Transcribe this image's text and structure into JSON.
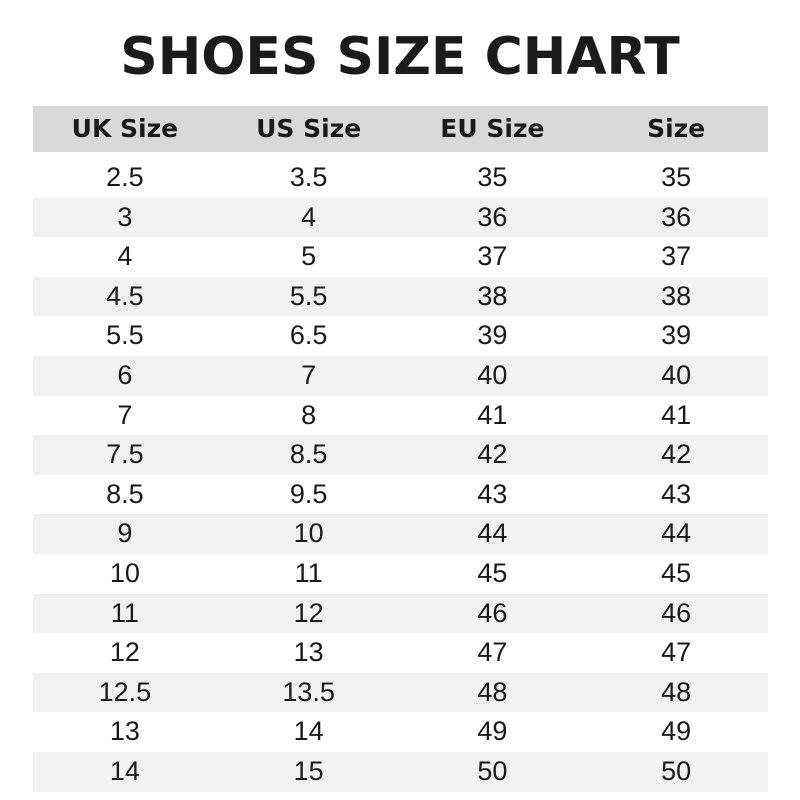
{
  "chart_data": {
    "type": "table",
    "title": "SHOES SIZE CHART",
    "columns": [
      "UK Size",
      "US Size",
      "EU Size",
      "Size"
    ],
    "rows": [
      [
        "2.5",
        "3.5",
        "35",
        "35"
      ],
      [
        "3",
        "4",
        "36",
        "36"
      ],
      [
        "4",
        "5",
        "37",
        "37"
      ],
      [
        "4.5",
        "5.5",
        "38",
        "38"
      ],
      [
        "5.5",
        "6.5",
        "39",
        "39"
      ],
      [
        "6",
        "7",
        "40",
        "40"
      ],
      [
        "7",
        "8",
        "41",
        "41"
      ],
      [
        "7.5",
        "8.5",
        "42",
        "42"
      ],
      [
        "8.5",
        "9.5",
        "43",
        "43"
      ],
      [
        "9",
        "10",
        "44",
        "44"
      ],
      [
        "10",
        "11",
        "45",
        "45"
      ],
      [
        "11",
        "12",
        "46",
        "46"
      ],
      [
        "12",
        "13",
        "47",
        "47"
      ],
      [
        "12.5",
        "13.5",
        "48",
        "48"
      ],
      [
        "13",
        "14",
        "49",
        "49"
      ],
      [
        "14",
        "15",
        "50",
        "50"
      ]
    ],
    "colors": {
      "header_bg": "#d9d9d9",
      "stripe_bg": "#f2f2f2"
    }
  }
}
